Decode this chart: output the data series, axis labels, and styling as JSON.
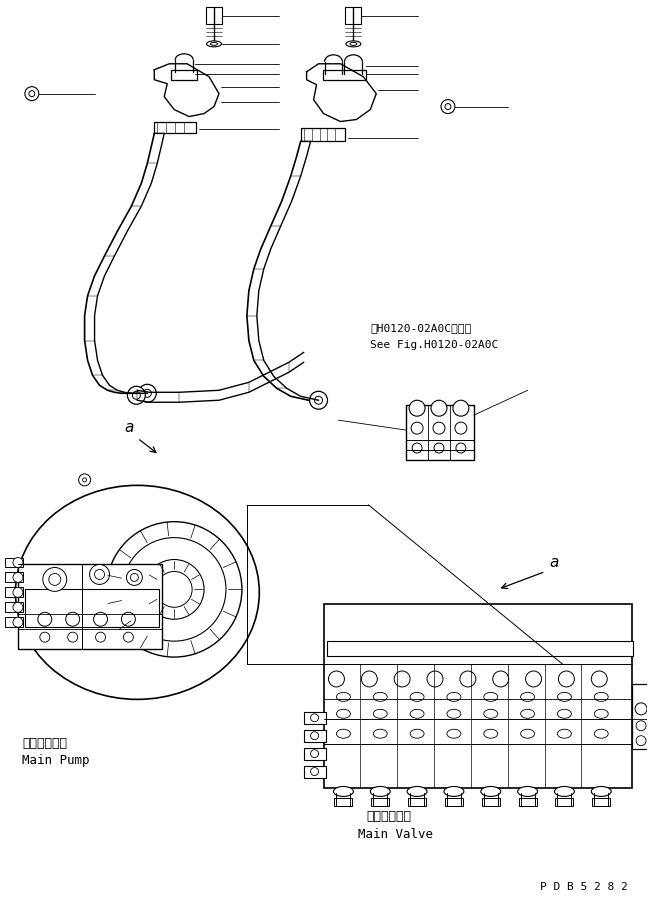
{
  "bg_color": "#ffffff",
  "line_color": "#000000",
  "fig_width": 6.5,
  "fig_height": 9.07,
  "dpi": 100,
  "part_code": "P D B 5 2 8 2",
  "ref_text_jp": "第H0120-02A0C図参照",
  "ref_text_en": "See Fig.H0120-02A0C",
  "main_pump_jp": "メインポンプ",
  "main_pump_en": "Main Pump",
  "main_valve_jp": "メインバルブ",
  "main_valve_en": "Main Valve",
  "label_a": "a"
}
